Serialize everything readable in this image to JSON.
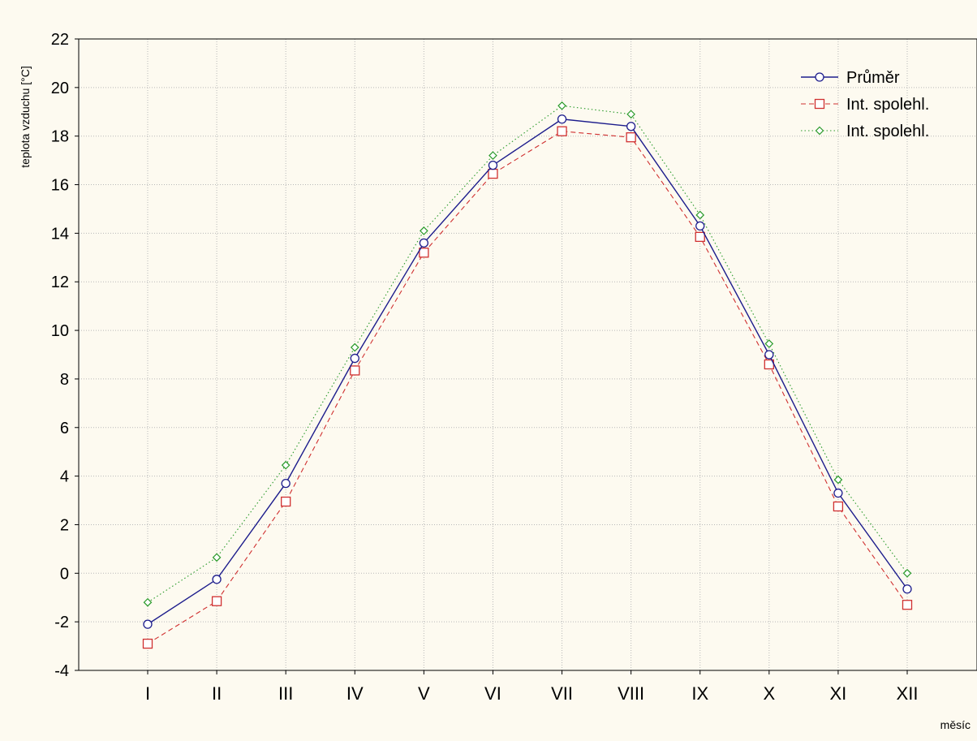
{
  "chart_data": {
    "type": "line",
    "ylabel": "teplota vzduchu [°C]",
    "xlabel": "měsíc",
    "categories": [
      "I",
      "II",
      "III",
      "IV",
      "V",
      "VI",
      "VII",
      "VIII",
      "IX",
      "X",
      "XI",
      "XII"
    ],
    "ylim": [
      -4,
      22
    ],
    "yticks": [
      -4,
      -2,
      0,
      2,
      4,
      6,
      8,
      10,
      12,
      14,
      16,
      18,
      20,
      22
    ],
    "grid": true,
    "legend_position": "top-right",
    "series": [
      {
        "name": "Průměr",
        "color": "#1c1c8c",
        "line_style": "solid",
        "marker": "circle",
        "values": [
          -2.1,
          -0.25,
          3.7,
          8.85,
          13.6,
          16.8,
          18.7,
          18.4,
          14.3,
          9.0,
          3.3,
          -0.65
        ]
      },
      {
        "name": "Int. spolehl.",
        "color": "#d03030",
        "line_style": "dashed",
        "marker": "square",
        "values": [
          -2.9,
          -1.15,
          2.95,
          8.35,
          13.2,
          16.45,
          18.2,
          17.95,
          13.85,
          8.6,
          2.75,
          -1.3
        ]
      },
      {
        "name": "Int. spolehl.",
        "color": "#2a9a2a",
        "line_style": "dotted",
        "marker": "diamond",
        "values": [
          -1.2,
          0.65,
          4.45,
          9.3,
          14.1,
          17.2,
          19.25,
          18.9,
          14.75,
          9.45,
          3.85,
          0.0
        ]
      }
    ]
  }
}
